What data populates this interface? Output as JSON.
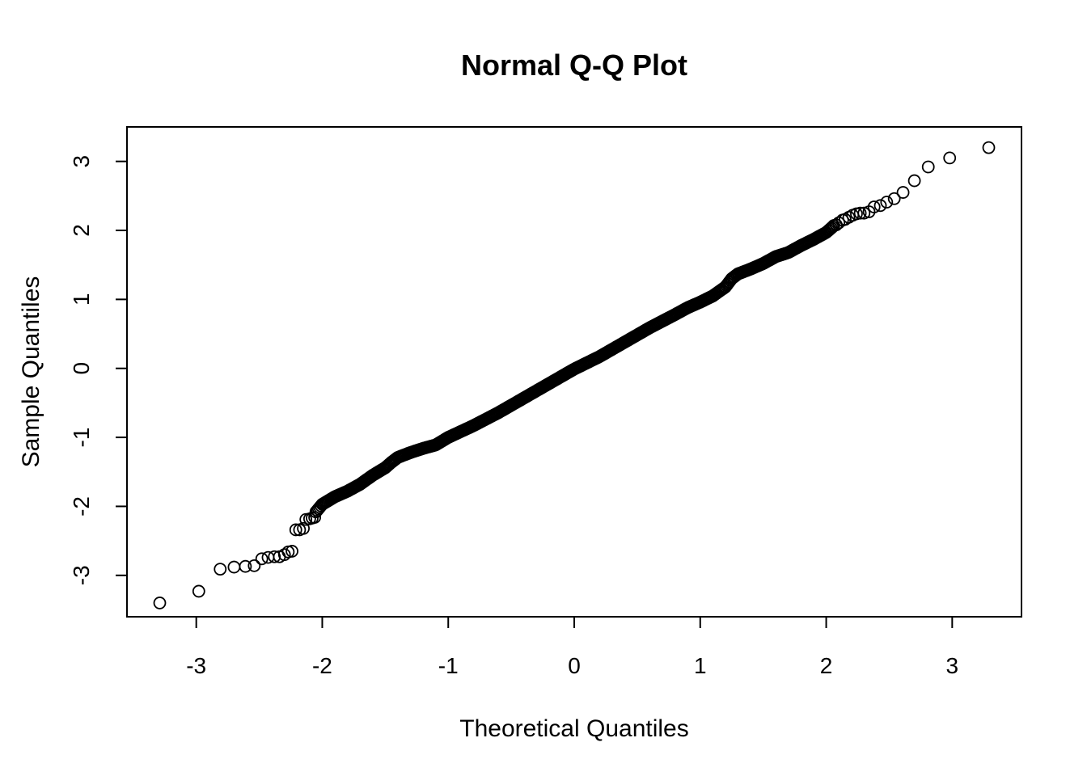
{
  "chart_data": {
    "type": "scatter",
    "title": "Normal Q-Q Plot",
    "xlabel": "Theoretical Quantiles",
    "ylabel": "Sample Quantiles",
    "xlim": [
      -3.55,
      3.55
    ],
    "ylim": [
      -3.6,
      3.5
    ],
    "x_ticks": [
      -3,
      -2,
      -1,
      0,
      1,
      2,
      3
    ],
    "x_tick_labels": [
      "-3",
      "-2",
      "-1",
      "0",
      "1",
      "2",
      "3"
    ],
    "y_ticks": [
      -3,
      -2,
      -1,
      0,
      1,
      2,
      3
    ],
    "y_tick_labels": [
      "-3",
      "-2",
      "-1",
      "0",
      "1",
      "2",
      "3"
    ],
    "grid": false,
    "marker": "open-circle",
    "n_points": 1000,
    "tail_points": [
      [
        -3.29,
        -3.4
      ],
      [
        -2.98,
        -3.23
      ],
      [
        -2.81,
        -2.91
      ],
      [
        -2.7,
        -2.88
      ],
      [
        -2.61,
        -2.87
      ],
      [
        -2.54,
        -2.86
      ],
      [
        -2.48,
        -2.76
      ],
      [
        -2.43,
        -2.74
      ],
      [
        -2.38,
        -2.73
      ],
      [
        -2.34,
        -2.73
      ],
      [
        -2.3,
        -2.7
      ],
      [
        -2.27,
        -2.66
      ],
      [
        -2.24,
        -2.65
      ],
      [
        -2.21,
        -2.34
      ],
      [
        -2.18,
        -2.34
      ],
      [
        -2.15,
        -2.32
      ],
      [
        -2.13,
        -2.19
      ],
      [
        -2.1,
        -2.18
      ],
      [
        -2.08,
        -2.17
      ],
      [
        -2.06,
        -2.16
      ],
      [
        2.06,
        2.07
      ],
      [
        2.08,
        2.08
      ],
      [
        2.1,
        2.11
      ],
      [
        2.13,
        2.15
      ],
      [
        2.15,
        2.16
      ],
      [
        2.18,
        2.19
      ],
      [
        2.21,
        2.22
      ],
      [
        2.24,
        2.24
      ],
      [
        2.27,
        2.25
      ],
      [
        2.3,
        2.25
      ],
      [
        2.34,
        2.27
      ],
      [
        2.38,
        2.34
      ],
      [
        2.43,
        2.36
      ],
      [
        2.48,
        2.41
      ],
      [
        2.54,
        2.46
      ],
      [
        2.61,
        2.55
      ],
      [
        2.7,
        2.72
      ],
      [
        2.81,
        2.92
      ],
      [
        2.98,
        3.05
      ],
      [
        3.29,
        3.2
      ]
    ],
    "body_curve": [
      [
        -2.05,
        -2.08
      ],
      [
        -2.0,
        -1.97
      ],
      [
        -1.9,
        -1.86
      ],
      [
        -1.8,
        -1.78
      ],
      [
        -1.7,
        -1.68
      ],
      [
        -1.6,
        -1.55
      ],
      [
        -1.5,
        -1.44
      ],
      [
        -1.45,
        -1.36
      ],
      [
        -1.4,
        -1.29
      ],
      [
        -1.3,
        -1.22
      ],
      [
        -1.2,
        -1.16
      ],
      [
        -1.1,
        -1.11
      ],
      [
        -1.0,
        -1.0
      ],
      [
        -0.8,
        -0.83
      ],
      [
        -0.6,
        -0.64
      ],
      [
        -0.4,
        -0.43
      ],
      [
        -0.2,
        -0.22
      ],
      [
        0.0,
        -0.01
      ],
      [
        0.2,
        0.17
      ],
      [
        0.4,
        0.38
      ],
      [
        0.6,
        0.59
      ],
      [
        0.8,
        0.78
      ],
      [
        0.9,
        0.88
      ],
      [
        1.0,
        0.96
      ],
      [
        1.1,
        1.05
      ],
      [
        1.2,
        1.18
      ],
      [
        1.25,
        1.3
      ],
      [
        1.3,
        1.37
      ],
      [
        1.4,
        1.44
      ],
      [
        1.5,
        1.52
      ],
      [
        1.6,
        1.62
      ],
      [
        1.7,
        1.68
      ],
      [
        1.8,
        1.78
      ],
      [
        1.9,
        1.87
      ],
      [
        2.0,
        1.97
      ],
      [
        2.05,
        2.05
      ]
    ]
  }
}
